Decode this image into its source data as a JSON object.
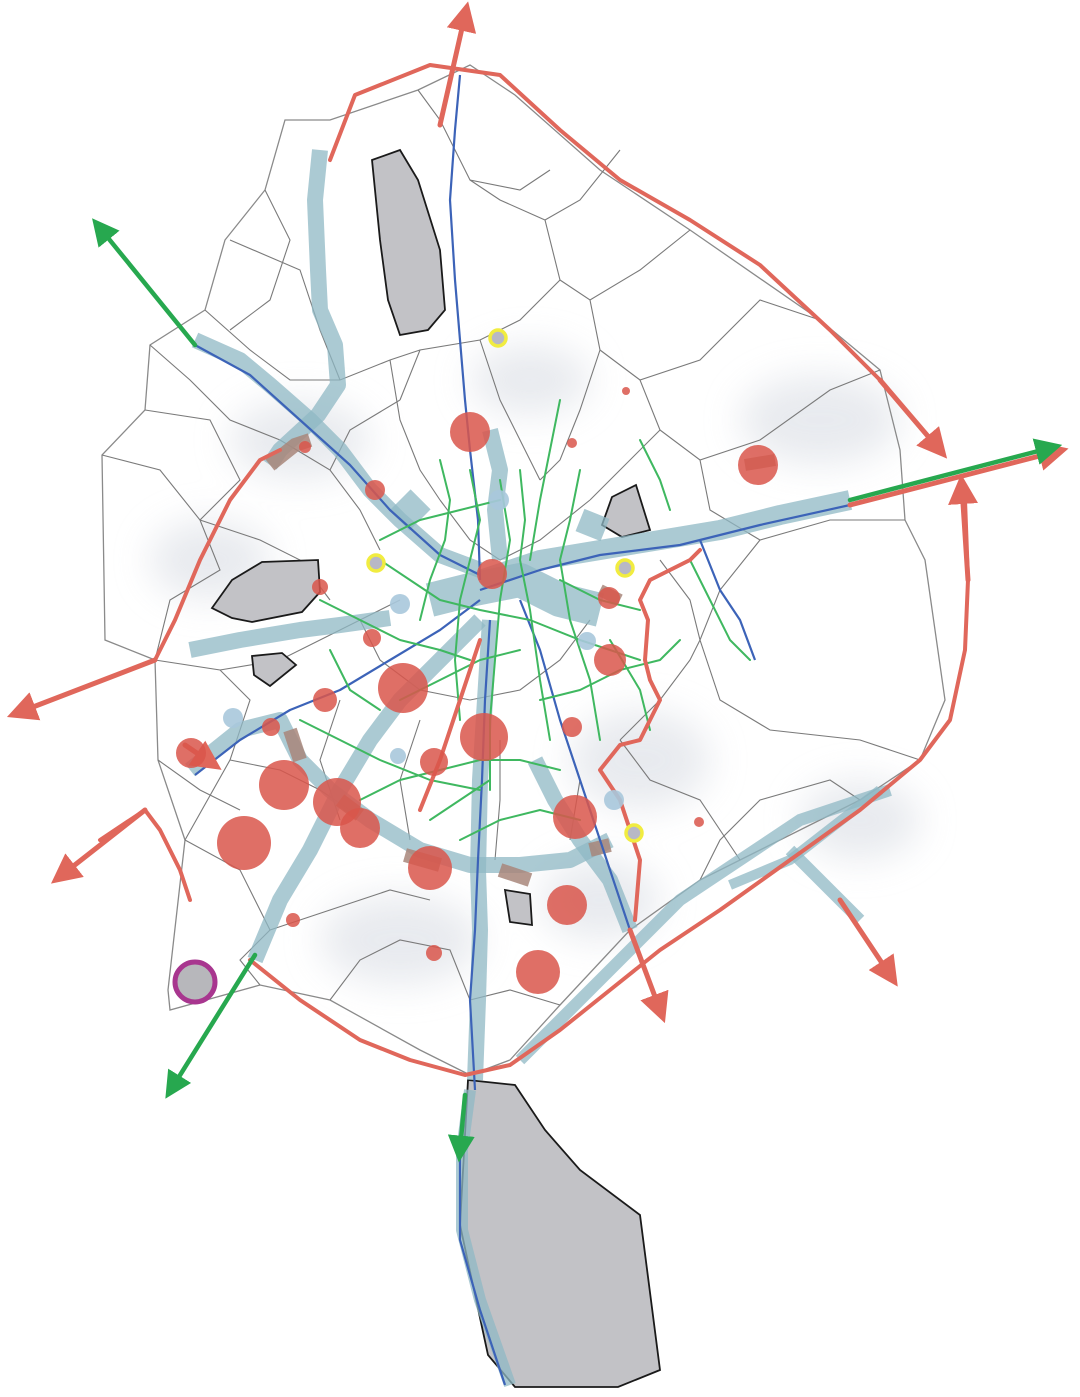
{
  "map": {
    "labels": [],
    "legend": [],
    "colors": {
      "district_border": "#7a7a7a",
      "red_route": "#e0675b",
      "green_arrow": "#27a84f",
      "blue_line": "#3c63b8",
      "green_line": "#3fb860",
      "corridor": "#8fb8c4",
      "red_spot": "#d9564b",
      "blue_spot": "#a9c8dc",
      "yellow_ring": "#f1ec40",
      "purple_ring": "#a8368f",
      "gray_area": "#c2c2c6"
    },
    "layers": [
      "district-boundaries",
      "gray-areas",
      "transport-corridors",
      "blue-lines",
      "green-network",
      "red-ring-routes",
      "red-arrows",
      "green-arrows",
      "red-spots",
      "blue-spots",
      "yellow-rings",
      "purple-ring"
    ]
  }
}
